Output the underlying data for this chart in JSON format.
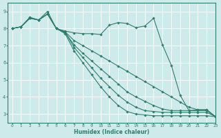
{
  "xlabel": "Humidex (Indice chaleur)",
  "ylabel": "",
  "xlim": [
    -0.5,
    23
  ],
  "ylim": [
    2.5,
    9.5
  ],
  "yticks": [
    3,
    4,
    5,
    6,
    7,
    8,
    9
  ],
  "xticks": [
    0,
    1,
    2,
    3,
    4,
    5,
    6,
    7,
    8,
    9,
    10,
    11,
    12,
    13,
    14,
    15,
    16,
    17,
    18,
    19,
    20,
    21,
    22,
    23
  ],
  "bg_color": "#ceeaea",
  "grid_color": "#ffffff",
  "line_color": "#2e7d6e",
  "series": [
    {
      "x": [
        0,
        1,
        2,
        3,
        4,
        5,
        6,
        7,
        8,
        9,
        10,
        11,
        12,
        13,
        14,
        15,
        16,
        17,
        18,
        19,
        20,
        21,
        22,
        23
      ],
      "y": [
        8.0,
        8.1,
        8.6,
        8.5,
        9.0,
        8.0,
        7.85,
        7.75,
        7.7,
        7.7,
        7.65,
        8.2,
        8.35,
        8.3,
        8.05,
        8.15,
        8.6,
        7.05,
        5.85,
        4.1,
        3.2,
        3.25,
        3.25,
        2.85
      ]
    },
    {
      "x": [
        0,
        1,
        2,
        3,
        4,
        5,
        6,
        7,
        8,
        9,
        10,
        11,
        12,
        13,
        14,
        15,
        16,
        17,
        18,
        19,
        20,
        21,
        22,
        23
      ],
      "y": [
        8.0,
        8.1,
        8.6,
        8.5,
        8.85,
        8.0,
        7.8,
        7.3,
        7.0,
        6.7,
        6.4,
        6.1,
        5.8,
        5.5,
        5.2,
        4.9,
        4.6,
        4.3,
        4.0,
        3.7,
        3.4,
        3.25,
        3.25,
        2.85
      ]
    },
    {
      "x": [
        0,
        1,
        2,
        3,
        4,
        5,
        6,
        7,
        8,
        9,
        10,
        11,
        12,
        13,
        14,
        15,
        16,
        17,
        18,
        19,
        20,
        21,
        22,
        23
      ],
      "y": [
        8.0,
        8.1,
        8.6,
        8.5,
        8.85,
        8.0,
        7.75,
        7.05,
        6.55,
        6.1,
        5.65,
        5.2,
        4.75,
        4.3,
        4.0,
        3.75,
        3.5,
        3.3,
        3.2,
        3.2,
        3.2,
        3.2,
        3.2,
        2.85
      ]
    },
    {
      "x": [
        0,
        1,
        2,
        3,
        4,
        5,
        6,
        7,
        8,
        9,
        10,
        11,
        12,
        13,
        14,
        15,
        16,
        17,
        18,
        19,
        20,
        21,
        22,
        23
      ],
      "y": [
        8.0,
        8.1,
        8.65,
        8.5,
        8.85,
        8.0,
        7.8,
        6.9,
        6.3,
        5.7,
        5.1,
        4.6,
        4.1,
        3.7,
        3.4,
        3.2,
        3.15,
        3.1,
        3.1,
        3.1,
        3.1,
        3.1,
        3.1,
        2.85
      ]
    },
    {
      "x": [
        0,
        1,
        2,
        3,
        4,
        5,
        6,
        7,
        8,
        9,
        10,
        11,
        12,
        13,
        14,
        15,
        16,
        17,
        18,
        19,
        20,
        21,
        22,
        23
      ],
      "y": [
        8.0,
        8.1,
        8.65,
        8.5,
        8.85,
        8.0,
        7.7,
        6.7,
        6.0,
        5.3,
        4.6,
        4.0,
        3.5,
        3.15,
        3.0,
        2.95,
        2.9,
        2.9,
        2.9,
        2.9,
        2.9,
        2.9,
        2.9,
        2.85
      ]
    }
  ]
}
